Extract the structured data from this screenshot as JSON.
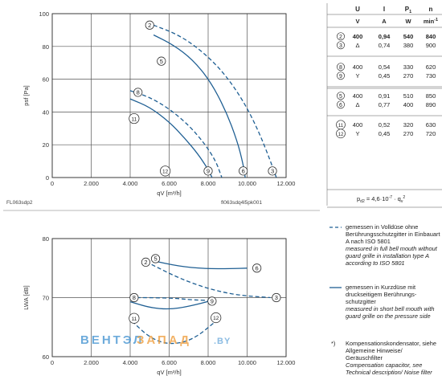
{
  "charts_info": {
    "top_code_left": "FL063sdp2",
    "top_code_right": "fl063sdq4l5pk001",
    "bottom_watermark_a": "ВЕНТЭЛ",
    "bottom_watermark_b": "ЗАПАД",
    "bottom_watermark_c": ".BY"
  },
  "table": {
    "headers": [
      "U",
      "I",
      "P1",
      "n"
    ],
    "units": [
      "V",
      "A",
      "W",
      "min-1"
    ],
    "groups": [
      {
        "rows": [
          {
            "label": "2",
            "u": "400",
            "i": "0,94",
            "p": "540",
            "n": "840",
            "bold": true
          },
          {
            "label": "3",
            "u": "Δ",
            "i": "0,74",
            "p": "380",
            "n": "900",
            "bold": false
          }
        ]
      },
      {
        "rows": [
          {
            "label": "8",
            "u": "400",
            "i": "0,54",
            "p": "330",
            "n": "620",
            "bold": false
          },
          {
            "label": "9",
            "u": "Y",
            "i": "0,45",
            "p": "270",
            "n": "730",
            "bold": false
          }
        ]
      },
      {
        "rows": [
          {
            "label": "5",
            "u": "400",
            "i": "0,91",
            "p": "510",
            "n": "850",
            "bold": false
          },
          {
            "label": "6",
            "u": "Δ",
            "i": "0,77",
            "p": "400",
            "n": "890",
            "bold": false
          }
        ]
      },
      {
        "rows": [
          {
            "label": "11",
            "u": "400",
            "i": "0,52",
            "p": "320",
            "n": "630",
            "bold": false
          },
          {
            "label": "12",
            "u": "Y",
            "i": "0,45",
            "p": "270",
            "n": "720",
            "bold": false
          }
        ]
      }
    ],
    "formula": "pd2 = 4,6·10-7 · qv2"
  },
  "legend": {
    "dashed_de": "gemessen in Volldüse ohne Berührungsschutzgitter in Einbauart A nach ISO 5801",
    "dashed_en": "measured in full bell mouth without guard grille in installation type A according to ISO 5801",
    "solid_de": "gemessen in Kurzdüse mit druckseitigem Berührungs-schutzgitter",
    "solid_en": "measured in short bell mouth with guard grille on the pressure side",
    "note_mark": "*)",
    "note_de": "Kompensationskondensator, siehe Allgemeine Hinweise/ Geräuschfilter",
    "note_en": "Compensation capacitor, see Technical description/ Noise filter"
  },
  "colors": {
    "curve": "#1f5f93",
    "grid": "#555555",
    "watermark_blue": "#3d8fd0",
    "watermark_orange": "#f0a040"
  },
  "chart_data": [
    {
      "type": "line",
      "title": "",
      "xlabel": "qV [m³/h]",
      "ylabel": "psf [Pa]",
      "xlim": [
        0,
        12000
      ],
      "ylim": [
        0,
        100
      ],
      "xticks": [
        "0",
        "2.000",
        "4.000",
        "6.000",
        "8.000",
        "10.000",
        "12.000"
      ],
      "yticks": [
        "0",
        "20",
        "40",
        "60",
        "80",
        "100"
      ],
      "grid": true,
      "series": [
        {
          "id": "2-3",
          "style": "dashed",
          "points": [
            [
              5200,
              93
            ],
            [
              6500,
              87
            ],
            [
              7700,
              77
            ],
            [
              8800,
              64
            ],
            [
              9800,
              47
            ],
            [
              10600,
              28
            ],
            [
              11200,
              10
            ],
            [
              11500,
              0
            ]
          ]
        },
        {
          "id": "5-6",
          "style": "solid",
          "points": [
            [
              5200,
              87
            ],
            [
              6200,
              81
            ],
            [
              7200,
              72
            ],
            [
              8100,
              59
            ],
            [
              8900,
              41
            ],
            [
              9500,
              22
            ],
            [
              9800,
              8
            ],
            [
              9900,
              0
            ]
          ]
        },
        {
          "id": "8-9",
          "style": "dashed",
          "points": [
            [
              4000,
              53
            ],
            [
              5000,
              49
            ],
            [
              6000,
              42
            ],
            [
              7000,
              32
            ],
            [
              7800,
              21
            ],
            [
              8400,
              10
            ],
            [
              8700,
              0
            ]
          ]
        },
        {
          "id": "11-12",
          "style": "solid",
          "points": [
            [
              4000,
              48
            ],
            [
              5000,
              43
            ],
            [
              6000,
              34
            ],
            [
              6800,
              24
            ],
            [
              7500,
              14
            ],
            [
              8000,
              5
            ],
            [
              8200,
              0
            ]
          ]
        }
      ],
      "point_labels": [
        {
          "text": "2",
          "x": 5000,
          "y": 93
        },
        {
          "text": "5",
          "x": 5600,
          "y": 71
        },
        {
          "text": "8",
          "x": 4400,
          "y": 52
        },
        {
          "text": "11",
          "x": 4200,
          "y": 36
        },
        {
          "text": "12",
          "x": 5800,
          "y": 4
        },
        {
          "text": "9",
          "x": 8000,
          "y": 4
        },
        {
          "text": "6",
          "x": 9800,
          "y": 4
        },
        {
          "text": "3",
          "x": 11300,
          "y": 4
        }
      ]
    },
    {
      "type": "line",
      "title": "",
      "xlabel": "qV [m³/h]",
      "ylabel": "LWA [dB]",
      "xlim": [
        0,
        12000
      ],
      "ylim": [
        60,
        80
      ],
      "xticks": [
        "0",
        "2.000",
        "4.000",
        "6.000",
        "8.000",
        "10.000",
        "12.000"
      ],
      "yticks": [
        "60",
        "70",
        "80"
      ],
      "grid": true,
      "series": [
        {
          "id": "2-3",
          "style": "dashed",
          "points": [
            [
              5100,
              75.6
            ],
            [
              6500,
              73.3
            ],
            [
              8000,
              71.5
            ],
            [
              9500,
              70.4
            ],
            [
              11200,
              70.0
            ]
          ]
        },
        {
          "id": "5-6",
          "style": "solid",
          "points": [
            [
              5100,
              76.3
            ],
            [
              6500,
              75.3
            ],
            [
              7800,
              74.9
            ],
            [
              9200,
              74.9
            ],
            [
              10000,
              75.0
            ]
          ]
        },
        {
          "id": "8-9",
          "style": "dashed",
          "points": [
            [
              4000,
              70.0
            ],
            [
              5000,
              70.0
            ],
            [
              6300,
              69.9
            ],
            [
              7200,
              69.6
            ],
            [
              8400,
              69.5
            ]
          ]
        },
        {
          "id": "11-12",
          "style": "solid",
          "points": [
            [
              4000,
              69.3
            ],
            [
              5000,
              68.3
            ],
            [
              6000,
              68.0
            ],
            [
              7000,
              68.5
            ],
            [
              8300,
              69.6
            ]
          ]
        },
        {
          "id": "11-12 low",
          "style": "dashed",
          "points": [
            [
              4100,
              66.0
            ],
            [
              5000,
              63.2
            ],
            [
              6000,
              62.0
            ],
            [
              7200,
              62.8
            ],
            [
              8400,
              66.0
            ]
          ]
        }
      ],
      "point_labels": [
        {
          "text": "2",
          "x": 4800,
          "y": 76.0
        },
        {
          "text": "5",
          "x": 5300,
          "y": 76.6
        },
        {
          "text": "6",
          "x": 10500,
          "y": 75.0
        },
        {
          "text": "8",
          "x": 4200,
          "y": 70.0
        },
        {
          "text": "9",
          "x": 8200,
          "y": 69.4
        },
        {
          "text": "3",
          "x": 11500,
          "y": 70.0
        },
        {
          "text": "11",
          "x": 4200,
          "y": 66.5
        },
        {
          "text": "12",
          "x": 8400,
          "y": 66.6
        }
      ]
    }
  ]
}
